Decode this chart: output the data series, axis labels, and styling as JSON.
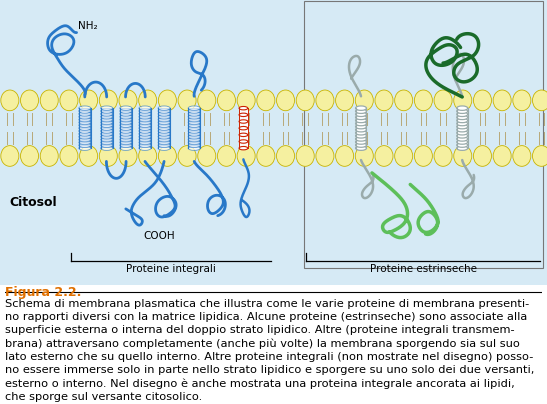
{
  "fig_label": "Figura 2.2.",
  "caption": "Schema di membrana plasmatica che illustra come le varie proteine di membrana presenti-\nno rapporti diversi con la matrice lipidica. Alcune proteine (estrinseche) sono associate alla\nsuperficie esterna o interna del doppio strato lipidico. Alte (proteine integrali transmem-\nbrana) attraversano completamente (anche più volte) la membrana sporgendo sia sul suo\nlato esterno che su quello interno. Altre proteine integrali (non mostrate nel disegno) posso-\nno essere immerse solo in parte nello strato lipidico e sporgere su uno solo dei due versanti,\nesterno o interno. Nel disegno è anche mostrata una proteina integrale ancorata ai lipidi,\nche sporge sul versante citosolico.",
  "label_integrali": "Proteine integrali",
  "label_estrinseche": "Proteine estrinseche",
  "label_citosol": "Citosol",
  "label_nh2": "NH₂",
  "label_cooh": "COOH",
  "bg_color": "#d6eaf5",
  "lipid_color": "#f5f0a0",
  "lipid_outline": "#c8b400",
  "blue_protein": "#2878c8",
  "dark_green_protein": "#1a6b2a",
  "light_green_protein": "#5dbf5a",
  "gray_protein": "#9aabab",
  "red_protein": "#cc2200",
  "fig_label_color": "#e07000",
  "fig_label_fontsize": 9,
  "caption_fontsize": 8.2
}
